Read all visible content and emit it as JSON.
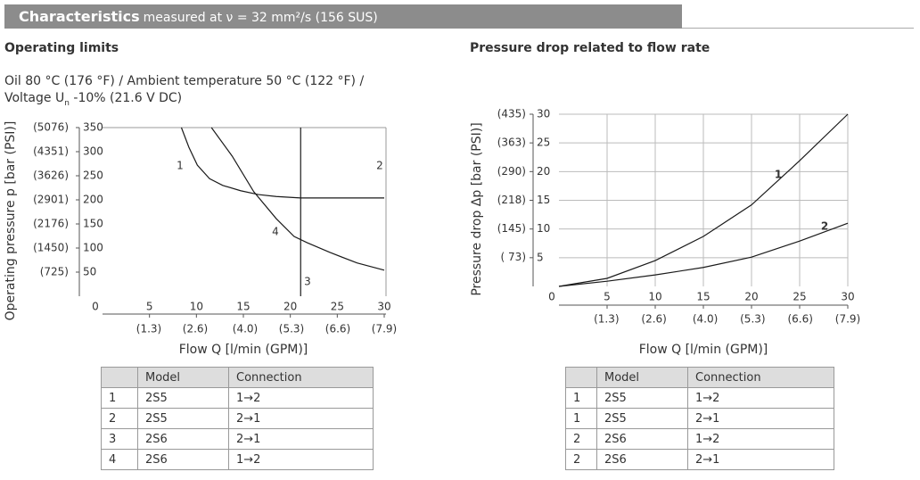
{
  "header": {
    "title": "Characteristics",
    "subtitle": "measured at ν = 32 mm²/s (156 SUS)"
  },
  "conditions": {
    "line1": "Oil 80 °C (176 °F) / Ambient temperature 50 °C (122 °F) /",
    "line2_start": "Voltage U",
    "line2_sub": "n",
    "line2_end": "-10% (21.6 V DC)"
  },
  "chart_data": [
    {
      "type": "line",
      "title": "Operating limits",
      "xlabel": "Flow Q [l/min (GPM)]",
      "ylabel": "Operating pressure p [bar (PSI)]",
      "grid": false,
      "xlim": [
        0,
        30
      ],
      "xticks": [
        0,
        5,
        10,
        15,
        20,
        25,
        30
      ],
      "x2lim": [
        0,
        7.9
      ],
      "x2ticks": [
        {
          "value": 1.3,
          "label": "(1.3)"
        },
        {
          "value": 2.6,
          "label": "(2.6)"
        },
        {
          "value": 4.0,
          "label": "(4.0)"
        },
        {
          "value": 5.3,
          "label": "(5.3)"
        },
        {
          "value": 6.6,
          "label": "(6.6)"
        },
        {
          "value": 7.9,
          "label": "(7.9)"
        }
      ],
      "ylim": [
        0,
        350
      ],
      "yticks": [
        50,
        100,
        150,
        200,
        250,
        300,
        350
      ],
      "y2lim": [
        0,
        5076
      ],
      "y2ticks": [
        {
          "value": 725,
          "label": "(725)"
        },
        {
          "value": 1450,
          "label": "(1450)"
        },
        {
          "value": 2176,
          "label": "(2176)"
        },
        {
          "value": 2901,
          "label": "(2901)"
        },
        {
          "value": 3626,
          "label": "(3626)"
        },
        {
          "value": 4351,
          "label": "(4351)"
        },
        {
          "value": 5076,
          "label": "(5076)"
        }
      ],
      "series": [
        {
          "name": "1",
          "color": "#1a1a1a",
          "x": [
            8.4,
            9.2,
            10.1,
            11.4,
            12.8,
            14.7,
            16.6,
            18.5,
            21.1
          ],
          "values": [
            350,
            309,
            272,
            244,
            230,
            219,
            211,
            207,
            204
          ]
        },
        {
          "name": "2",
          "color": "#1a1a1a",
          "x": [
            21.1,
            30
          ],
          "values": [
            204,
            204
          ]
        },
        {
          "name": "3",
          "color": "#1a1a1a",
          "x": [
            21.1,
            21.1
          ],
          "values": [
            350,
            0
          ]
        },
        {
          "name": "4",
          "color": "#1a1a1a",
          "x": [
            11.6,
            13.8,
            16.1,
            18.5,
            20.4,
            21.8,
            24.2,
            27.1,
            30
          ],
          "values": [
            350,
            291,
            217,
            161,
            124,
            111,
            91,
            69,
            54
          ]
        }
      ]
    },
    {
      "type": "line",
      "title": "Pressure drop related to flow rate",
      "xlabel": "Flow Q [l/min (GPM)]",
      "ylabel": "Pressure drop Δp [bar (PSI)]",
      "grid": true,
      "xlim": [
        0,
        30
      ],
      "xticks": [
        0,
        5,
        10,
        15,
        20,
        25,
        30
      ],
      "x2lim": [
        0,
        7.9
      ],
      "x2ticks": [
        {
          "value": 1.3,
          "label": "(1.3)"
        },
        {
          "value": 2.6,
          "label": "(2.6)"
        },
        {
          "value": 4.0,
          "label": "(4.0)"
        },
        {
          "value": 5.3,
          "label": "(5.3)"
        },
        {
          "value": 6.6,
          "label": "(6.6)"
        },
        {
          "value": 7.9,
          "label": "(7.9)"
        }
      ],
      "ylim": [
        0,
        30
      ],
      "yticks": [
        5,
        10,
        15,
        20,
        25,
        30
      ],
      "y2lim": [
        0,
        435
      ],
      "y2ticks": [
        {
          "value": 73,
          "label": "( 73)"
        },
        {
          "value": 145,
          "label": "(145)"
        },
        {
          "value": 218,
          "label": "(218)"
        },
        {
          "value": 290,
          "label": "(290)"
        },
        {
          "value": 363,
          "label": "(363)"
        },
        {
          "value": 435,
          "label": "(435)"
        }
      ],
      "series": [
        {
          "name": "1",
          "color": "#1a1a1a",
          "x": [
            0,
            5,
            10,
            15,
            20,
            25,
            30
          ],
          "values": [
            0,
            1.4,
            4.5,
            8.7,
            14.2,
            21.9,
            30
          ]
        },
        {
          "name": "2",
          "color": "#1a1a1a",
          "x": [
            0,
            5,
            10,
            15,
            20,
            25,
            30
          ],
          "values": [
            0,
            0.9,
            2,
            3.3,
            5.1,
            7.9,
            11
          ]
        }
      ]
    }
  ],
  "tables": [
    {
      "columns": [
        "Model",
        "Connection"
      ],
      "rows": [
        [
          "1",
          "2S5",
          "1→2"
        ],
        [
          "2",
          "2S5",
          "2→1"
        ],
        [
          "3",
          "2S6",
          "2→1"
        ],
        [
          "4",
          "2S6",
          "1→2"
        ]
      ]
    },
    {
      "columns": [
        "Model",
        "Connection"
      ],
      "rows": [
        [
          "1",
          "2S5",
          "1→2"
        ],
        [
          "1",
          "2S5",
          "2→1"
        ],
        [
          "2",
          "2S6",
          "1→2"
        ],
        [
          "2",
          "2S6",
          "2→1"
        ]
      ]
    }
  ]
}
